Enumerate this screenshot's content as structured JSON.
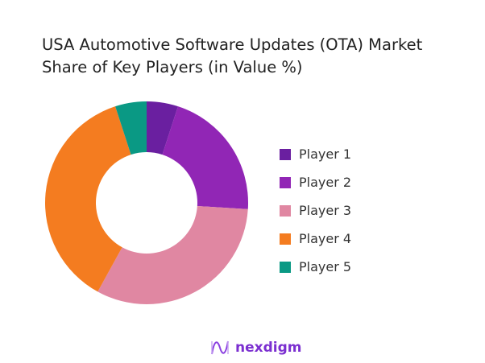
{
  "chart_data": {
    "type": "pie",
    "donut": true,
    "title": "USA Automotive Software Updates (OTA) Market Share of Key Players (in Value %)",
    "categories": [
      "Player 1",
      "Player 2",
      "Player 3",
      "Player 4",
      "Player 5"
    ],
    "values": [
      5,
      21,
      32,
      37,
      5
    ],
    "colors": [
      "#6a1fa0",
      "#9126b5",
      "#e087a2",
      "#f47c20",
      "#0a9984"
    ],
    "legend_position": "right"
  },
  "brand": {
    "name": "nexdigm",
    "color": "#7b2fd0"
  }
}
